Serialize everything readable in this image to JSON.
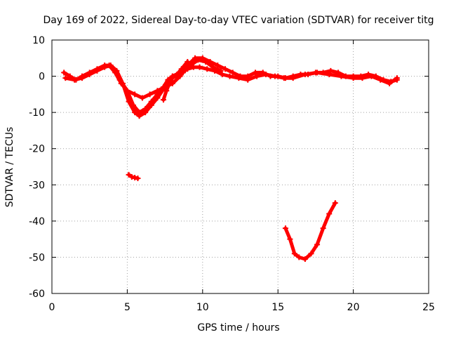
{
  "chart_data": {
    "type": "scatter",
    "title": "Day 169 of 2022, Sidereal Day-to-day VTEC variation (SDTVAR) for receiver titg",
    "xlabel": "GPS time / hours",
    "ylabel": "SDTVAR / TECUs",
    "xlim": [
      0,
      25
    ],
    "ylim": [
      -60,
      10
    ],
    "xticks": [
      0,
      5,
      10,
      15,
      20,
      25
    ],
    "yticks": [
      -60,
      -50,
      -40,
      -30,
      -20,
      -10,
      0,
      10
    ],
    "grid": true,
    "color": "#ff0000",
    "series": [
      {
        "name": "main-trace-a",
        "x": [
          0.8,
          1.2,
          1.6,
          2.0,
          2.5,
          3.0,
          3.5,
          3.8,
          4.2,
          4.6,
          5.0,
          5.5,
          6.0,
          6.5,
          7.0,
          7.5,
          8.0,
          8.5,
          9.0,
          9.5,
          10.0,
          10.5,
          11.0,
          11.5,
          12.0,
          12.5,
          13.0,
          13.5,
          14.0,
          14.5,
          15.0,
          15.5,
          16.0,
          16.5,
          17.0,
          17.5,
          18.0,
          18.5,
          19.0,
          19.5,
          20.0,
          20.5,
          21.0,
          21.5,
          22.0,
          22.5,
          22.9
        ],
        "y": [
          1,
          0,
          -1,
          0,
          1,
          2,
          3,
          3,
          1,
          -2,
          -4,
          -5,
          -6,
          -5,
          -4,
          -3,
          -2,
          0,
          3,
          5,
          5,
          4,
          3,
          2,
          1,
          0,
          0,
          1,
          1,
          0,
          0,
          -0.5,
          0,
          0.5,
          0.5,
          1,
          1,
          1.5,
          1,
          0,
          0,
          0,
          0.5,
          0,
          -1,
          -1.5,
          -1
        ]
      },
      {
        "name": "main-trace-b",
        "x": [
          0.9,
          1.5,
          2.0,
          2.5,
          3.0,
          3.5,
          3.9,
          4.3,
          4.7,
          5.1,
          5.5,
          5.8,
          6.2,
          6.6,
          7.0,
          7.5,
          8.0,
          8.5,
          9.0,
          9.4,
          9.8,
          10.3,
          10.8,
          11.3,
          11.8,
          12.4,
          13.0,
          13.6,
          14.2,
          14.8,
          15.4,
          16.0,
          16.8,
          17.6,
          18.4,
          19.2,
          20.0,
          20.6,
          21.2,
          21.8,
          22.4,
          22.9
        ],
        "y": [
          -0.5,
          -1,
          -0.5,
          0.5,
          1.5,
          2.5,
          3,
          1.5,
          -2,
          -7,
          -10,
          -11,
          -10,
          -8,
          -6,
          -3,
          0,
          1,
          2,
          2.5,
          2.5,
          2,
          1.5,
          0.5,
          0,
          -0.5,
          -1,
          0,
          0.5,
          0,
          -0.5,
          -0.5,
          0.5,
          1,
          0.5,
          0,
          -0.5,
          -0.5,
          0,
          -1,
          -2,
          -0.5
        ]
      },
      {
        "name": "main-trace-c",
        "x": [
          4.5,
          5.0,
          5.4,
          5.8,
          6.2,
          6.6,
          7.0,
          7.4,
          7.7,
          8.0,
          8.3,
          8.7,
          9.2,
          9.7,
          10.2,
          10.7,
          11.2
        ],
        "y": [
          -1,
          -4,
          -8,
          -10,
          -9,
          -7,
          -5,
          -3,
          -1,
          0,
          0,
          1,
          3,
          4.5,
          4,
          2.5,
          1.5
        ]
      },
      {
        "name": "branch-descending",
        "x": [
          7.4,
          7.6,
          7.8,
          8.0,
          8.3,
          8.6,
          9.0
        ],
        "y": [
          -6.5,
          -4,
          -2,
          -0.5,
          0.5,
          2,
          4
        ]
      },
      {
        "name": "short-segment",
        "x": [
          5.1,
          5.3,
          5.5,
          5.7
        ],
        "y": [
          -27.2,
          -27.8,
          -28.0,
          -28.2
        ]
      },
      {
        "name": "deep-dip",
        "x": [
          15.5,
          15.8,
          16.1,
          16.4,
          16.8,
          17.2,
          17.6,
          18.0,
          18.4,
          18.8
        ],
        "y": [
          -42,
          -45,
          -49,
          -50,
          -50.5,
          -49,
          -46.5,
          -42,
          -38,
          -35
        ]
      }
    ]
  }
}
